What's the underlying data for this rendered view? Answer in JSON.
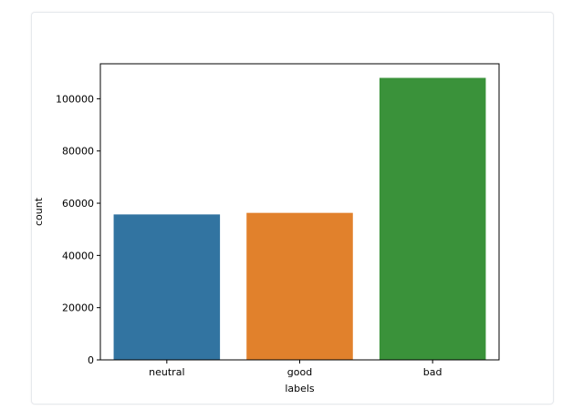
{
  "chart_data": {
    "type": "bar",
    "title": "",
    "xlabel": "labels",
    "ylabel": "count",
    "categories": [
      "neutral",
      "good",
      "bad"
    ],
    "values": [
      55700,
      56300,
      108000
    ],
    "colors": [
      "#3274a1",
      "#e1812c",
      "#3a923a"
    ],
    "ylim": [
      0,
      113400
    ],
    "yticks": [
      0,
      20000,
      40000,
      60000,
      80000,
      100000
    ],
    "ytick_labels": [
      "0",
      "20000",
      "40000",
      "60000",
      "80000",
      "100000"
    ],
    "grid": false,
    "legend": "none"
  }
}
